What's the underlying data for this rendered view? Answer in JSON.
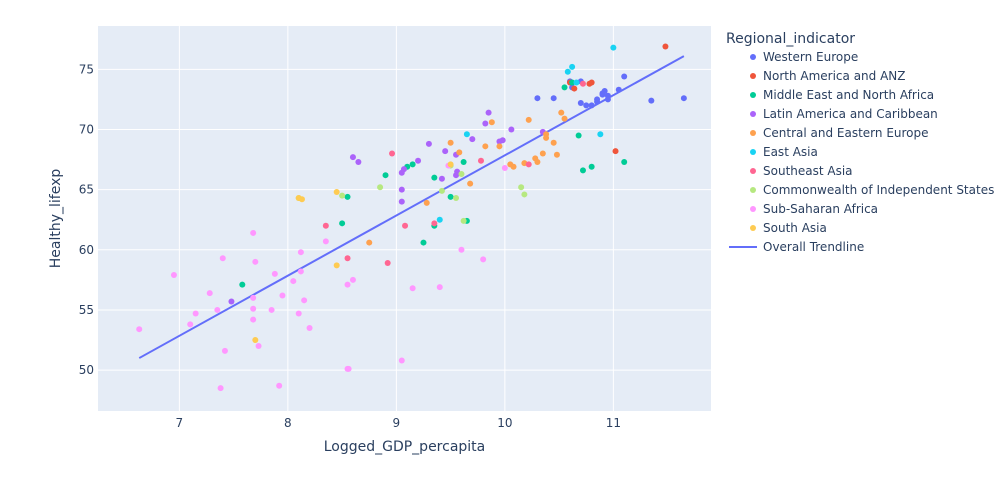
{
  "chart_data": {
    "type": "scatter",
    "xlabel": "Logged_GDP_percapita",
    "ylabel": "Healthy_lifexp",
    "xlim": [
      6.25,
      11.9
    ],
    "ylim": [
      46.6,
      78.6
    ],
    "x_ticks": [
      7,
      8,
      9,
      10,
      11
    ],
    "y_ticks": [
      50,
      55,
      60,
      65,
      70,
      75
    ],
    "grid": true,
    "legend_title": "Regional_indicator",
    "legend_position": "right",
    "series": [
      {
        "name": "Western Europe",
        "color": "#636efa",
        "points": [
          [
            10.6,
            74.0
          ],
          [
            10.7,
            74.0
          ],
          [
            10.75,
            72.0
          ],
          [
            10.8,
            72.0
          ],
          [
            10.85,
            72.5
          ],
          [
            10.9,
            73.0
          ],
          [
            10.92,
            73.2
          ],
          [
            10.95,
            72.8
          ],
          [
            10.95,
            72.5
          ],
          [
            11.05,
            73.3
          ],
          [
            11.1,
            74.4
          ],
          [
            11.35,
            72.4
          ],
          [
            11.65,
            72.6
          ],
          [
            10.62,
            73.5
          ],
          [
            10.7,
            72.2
          ],
          [
            10.85,
            72.3
          ],
          [
            10.45,
            72.6
          ],
          [
            10.3,
            72.6
          ],
          [
            10.9,
            72.9
          ]
        ]
      },
      {
        "name": "North America and ANZ",
        "color": "#ef553b",
        "points": [
          [
            10.6,
            73.9
          ],
          [
            10.8,
            73.9
          ],
          [
            10.78,
            73.8
          ],
          [
            11.48,
            76.9
          ],
          [
            11.02,
            68.2
          ],
          [
            10.64,
            73.4
          ]
        ]
      },
      {
        "name": "Middle East and North Africa",
        "color": "#00cc96",
        "points": [
          [
            10.55,
            73.5
          ],
          [
            10.62,
            73.9
          ],
          [
            10.68,
            69.5
          ],
          [
            10.72,
            66.6
          ],
          [
            10.8,
            66.9
          ],
          [
            11.1,
            67.3
          ],
          [
            9.1,
            66.9
          ],
          [
            9.15,
            67.1
          ],
          [
            9.35,
            66.0
          ],
          [
            9.62,
            67.3
          ],
          [
            9.5,
            64.4
          ],
          [
            9.35,
            62.0
          ],
          [
            9.25,
            60.6
          ],
          [
            8.55,
            64.4
          ],
          [
            8.5,
            62.2
          ],
          [
            7.58,
            57.1
          ],
          [
            8.9,
            66.2
          ],
          [
            9.65,
            62.4
          ]
        ]
      },
      {
        "name": "Latin America and Caribbean",
        "color": "#ab63fa",
        "points": [
          [
            9.3,
            68.8
          ],
          [
            9.45,
            68.2
          ],
          [
            9.55,
            67.9
          ],
          [
            9.7,
            69.2
          ],
          [
            9.82,
            70.5
          ],
          [
            9.85,
            71.4
          ],
          [
            9.95,
            69.0
          ],
          [
            10.06,
            70.0
          ],
          [
            8.6,
            67.7
          ],
          [
            8.65,
            67.3
          ],
          [
            9.2,
            67.4
          ],
          [
            9.05,
            66.4
          ],
          [
            9.07,
            66.7
          ],
          [
            9.42,
            65.9
          ],
          [
            9.56,
            66.5
          ],
          [
            9.05,
            65.0
          ],
          [
            9.05,
            64.0
          ],
          [
            7.48,
            55.7
          ],
          [
            9.55,
            66.2
          ],
          [
            9.98,
            69.1
          ],
          [
            10.35,
            69.8
          ]
        ]
      },
      {
        "name": "Central and Eastern Europe",
        "color": "#fea14f",
        "points": [
          [
            10.3,
            67.3
          ],
          [
            10.35,
            68.0
          ],
          [
            10.38,
            69.6
          ],
          [
            10.45,
            68.9
          ],
          [
            10.48,
            67.9
          ],
          [
            10.55,
            70.9
          ],
          [
            10.52,
            71.4
          ],
          [
            10.22,
            70.8
          ],
          [
            10.05,
            67.1
          ],
          [
            10.08,
            66.9
          ],
          [
            9.82,
            68.6
          ],
          [
            9.95,
            68.6
          ],
          [
            9.58,
            68.1
          ],
          [
            9.5,
            68.9
          ],
          [
            9.68,
            65.5
          ],
          [
            9.28,
            63.9
          ],
          [
            8.75,
            60.6
          ],
          [
            9.88,
            70.6
          ],
          [
            10.28,
            67.6
          ],
          [
            10.18,
            67.2
          ],
          [
            10.38,
            69.3
          ]
        ]
      },
      {
        "name": "East Asia",
        "color": "#19d3f3",
        "points": [
          [
            10.58,
            74.8
          ],
          [
            10.62,
            75.2
          ],
          [
            11.0,
            76.8
          ],
          [
            10.88,
            69.6
          ],
          [
            9.65,
            69.6
          ],
          [
            9.4,
            62.5
          ],
          [
            10.66,
            73.9
          ]
        ]
      },
      {
        "name": "Southeast Asia",
        "color": "#ff6692",
        "points": [
          [
            10.72,
            73.8
          ],
          [
            10.22,
            67.1
          ],
          [
            9.78,
            67.4
          ],
          [
            8.96,
            68.0
          ],
          [
            9.08,
            62.0
          ],
          [
            8.55,
            59.3
          ],
          [
            8.35,
            62.0
          ],
          [
            8.92,
            58.9
          ],
          [
            9.35,
            62.2
          ]
        ]
      },
      {
        "name": "Commonwealth of Independent States",
        "color": "#b6e880",
        "points": [
          [
            9.6,
            66.3
          ],
          [
            9.5,
            67.0
          ],
          [
            9.42,
            64.9
          ],
          [
            9.62,
            62.4
          ],
          [
            10.15,
            65.2
          ],
          [
            10.18,
            64.6
          ],
          [
            8.85,
            65.2
          ],
          [
            8.1,
            64.3
          ],
          [
            8.5,
            64.5
          ],
          [
            9.55,
            64.3
          ]
        ]
      },
      {
        "name": "Sub-Saharan Africa",
        "color": "#ff97ff",
        "points": [
          [
            6.63,
            53.4
          ],
          [
            6.95,
            57.9
          ],
          [
            7.1,
            53.8
          ],
          [
            7.15,
            54.7
          ],
          [
            7.28,
            56.4
          ],
          [
            7.35,
            55.0
          ],
          [
            7.4,
            59.3
          ],
          [
            7.42,
            51.6
          ],
          [
            7.38,
            48.5
          ],
          [
            7.68,
            61.4
          ],
          [
            7.68,
            56.0
          ],
          [
            7.68,
            55.1
          ],
          [
            7.68,
            54.2
          ],
          [
            7.7,
            59.0
          ],
          [
            7.73,
            52.0
          ],
          [
            7.85,
            55.0
          ],
          [
            7.88,
            58.0
          ],
          [
            7.95,
            56.2
          ],
          [
            7.92,
            48.7
          ],
          [
            8.05,
            57.4
          ],
          [
            8.1,
            54.7
          ],
          [
            8.12,
            58.2
          ],
          [
            8.12,
            59.8
          ],
          [
            8.15,
            55.8
          ],
          [
            8.2,
            53.5
          ],
          [
            8.35,
            60.7
          ],
          [
            8.55,
            57.1
          ],
          [
            8.6,
            57.5
          ],
          [
            8.55,
            50.1
          ],
          [
            8.56,
            50.1
          ],
          [
            9.05,
            50.8
          ],
          [
            9.15,
            56.8
          ],
          [
            9.4,
            56.9
          ],
          [
            9.6,
            60.0
          ],
          [
            9.8,
            59.2
          ],
          [
            10.0,
            66.8
          ],
          [
            9.48,
            67.0
          ]
        ]
      },
      {
        "name": "South Asia",
        "color": "#fecb52",
        "points": [
          [
            7.7,
            52.5
          ],
          [
            8.1,
            64.3
          ],
          [
            8.13,
            64.2
          ],
          [
            8.45,
            58.7
          ],
          [
            8.45,
            64.8
          ],
          [
            9.5,
            67.1
          ]
        ]
      }
    ],
    "trendline": {
      "name": "Overall Trendline",
      "color": "#636efa",
      "x": [
        6.63,
        11.65
      ],
      "y": [
        51.0,
        76.1
      ]
    }
  }
}
